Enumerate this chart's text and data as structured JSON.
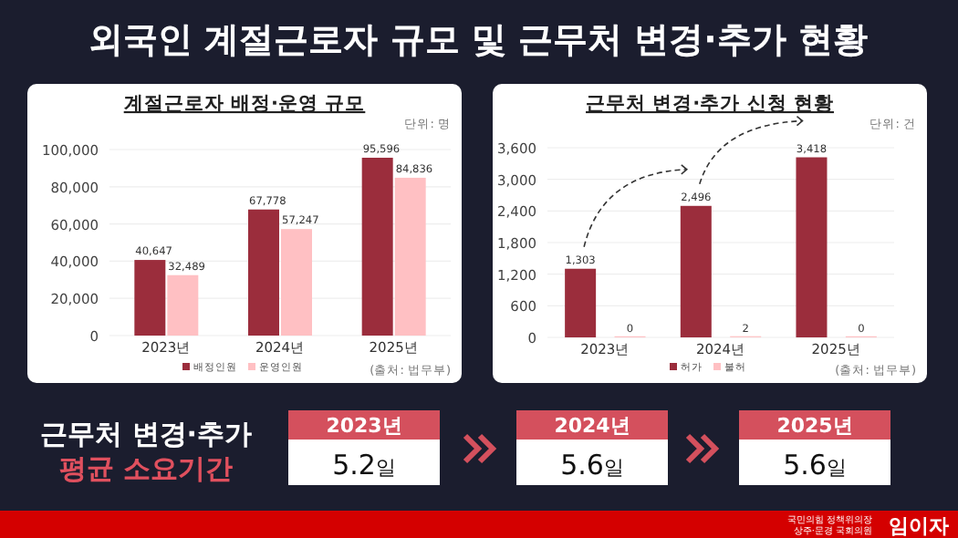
{
  "chart_data": [
    {
      "type": "bar",
      "title": "외국인 계절근로자 규모 및 근무처 변경·추가 현황",
      "subtitle": "계절근로자 배정·운영 규모",
      "categories": [
        "2023년",
        "2024년",
        "2025년"
      ],
      "series": [
        {
          "name": "배정인원",
          "color": "#9b2d3c",
          "values": [
            40647,
            67778,
            95596
          ],
          "value_labels": [
            "40,647",
            "67,778",
            "95,596"
          ]
        },
        {
          "name": "운영인원",
          "color": "#ffc0c3",
          "values": [
            32489,
            57247,
            84836
          ],
          "value_labels": [
            "32,489",
            "57,247",
            "84,836"
          ]
        }
      ],
      "ylim": [
        0,
        100000
      ],
      "yticks": [
        {
          "value": 0,
          "label": "0"
        },
        {
          "value": 20000,
          "label": "20,000"
        },
        {
          "value": 40000,
          "label": "40,000"
        },
        {
          "value": 60000,
          "label": "60,000"
        },
        {
          "value": 80000,
          "label": "80,000"
        },
        {
          "value": 100000,
          "label": "100,000"
        }
      ],
      "grid": "y",
      "legend": "bottom",
      "annotations": [
        "단위: 명",
        "(출처: 법무부)"
      ]
    },
    {
      "type": "bar",
      "title": "근무처 변경·추가 신청 현황",
      "categories": [
        "2023년",
        "2024년",
        "2025년"
      ],
      "series": [
        {
          "name": "허가",
          "color": "#9b2d3c",
          "values": [
            1303,
            2496,
            3418
          ],
          "value_labels": [
            "1,303",
            "2,496",
            "3,418"
          ]
        },
        {
          "name": "불허",
          "color": "#ffc0c3",
          "values": [
            0,
            2,
            0
          ],
          "value_labels": [
            "0",
            "2",
            "0"
          ]
        }
      ],
      "ylim": [
        0,
        3600
      ],
      "yticks": [
        {
          "value": 0,
          "label": "0"
        },
        {
          "value": 600,
          "label": "600"
        },
        {
          "value": 1200,
          "label": "1,200"
        },
        {
          "value": 1800,
          "label": "1,800"
        },
        {
          "value": 2400,
          "label": "2,400"
        },
        {
          "value": 3000,
          "label": "3,000"
        },
        {
          "value": 3600,
          "label": "3,600"
        }
      ],
      "grid": "y",
      "legend": "bottom",
      "annotations": [
        "단위: 건",
        "(출처: 법무부)"
      ]
    },
    {
      "type": "other",
      "title": "근무처 변경·추가",
      "subtitle": "평균 소요기간",
      "categories": [
        "2023년",
        "2024년",
        "2025년"
      ],
      "values": [
        5.2,
        5.6,
        5.6
      ],
      "value_labels": [
        "5.2일",
        "5.6일",
        "5.6일"
      ],
      "annotations": [
        "국민의힘 정책위의장",
        "상주·문경 국회의원",
        "임이자"
      ]
    }
  ]
}
